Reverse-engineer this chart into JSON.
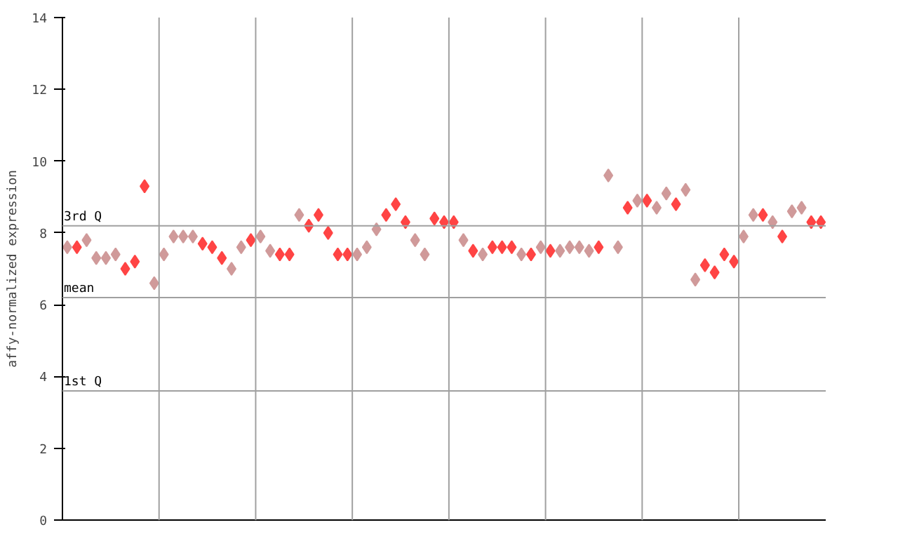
{
  "chart_data": {
    "type": "scatter",
    "ylabel": "affy-normalized expression",
    "categories": [
      null,
      null,
      null,
      null,
      null,
      null,
      null,
      null,
      null,
      null,
      null,
      null,
      null,
      null,
      null,
      null,
      null,
      null,
      null,
      null,
      null,
      null,
      null,
      null,
      null,
      null,
      null,
      null,
      null,
      null,
      null,
      null,
      null,
      null,
      null,
      null,
      null,
      null,
      null,
      null,
      null,
      null,
      null,
      null,
      null,
      null,
      null,
      null,
      null,
      null,
      null,
      null,
      null,
      null,
      null,
      null,
      null,
      null,
      null,
      null,
      null,
      null,
      null,
      null,
      null,
      null,
      null,
      null,
      null,
      null,
      null,
      null,
      null,
      null,
      null,
      null,
      null,
      null,
      null
    ],
    "values": [
      7.6,
      7.6,
      7.8,
      7.3,
      7.3,
      7.4,
      7.0,
      7.2,
      9.3,
      6.6,
      7.4,
      7.9,
      7.9,
      7.9,
      7.7,
      7.6,
      7.3,
      7.0,
      7.6,
      7.8,
      7.9,
      7.5,
      7.4,
      7.4,
      8.5,
      8.2,
      8.5,
      8.0,
      7.4,
      7.4,
      7.4,
      7.6,
      8.1,
      8.5,
      8.8,
      8.3,
      7.8,
      7.4,
      8.4,
      8.3,
      8.3,
      7.8,
      7.5,
      7.4,
      7.6,
      7.6,
      7.6,
      7.4,
      7.4,
      7.6,
      7.5,
      7.5,
      7.6,
      7.6,
      7.5,
      7.6,
      9.6,
      7.6,
      8.7,
      8.9,
      8.9,
      8.7,
      9.1,
      8.8,
      9.2,
      6.7,
      7.1,
      6.9,
      7.4,
      7.2,
      7.9,
      8.5,
      8.5,
      8.3,
      7.9,
      8.6,
      8.7,
      8.3,
      8.3
    ],
    "colors": [
      "#d09a9a",
      "#ff4444",
      "#d09a9a",
      "#d09a9a",
      "#d09a9a",
      "#d09a9a",
      "#ff4444",
      "#ff4444",
      "#ff4444",
      "#d09a9a",
      "#d09a9a",
      "#d09a9a",
      "#d09a9a",
      "#d09a9a",
      "#ff4444",
      "#ff4444",
      "#ff4444",
      "#d09a9a",
      "#d09a9a",
      "#ff4444",
      "#d09a9a",
      "#d09a9a",
      "#ff4444",
      "#ff4444",
      "#d09a9a",
      "#ff4444",
      "#ff4444",
      "#ff4444",
      "#ff4444",
      "#ff4444",
      "#d09a9a",
      "#d09a9a",
      "#d09a9a",
      "#ff4444",
      "#ff4444",
      "#ff4444",
      "#d09a9a",
      "#d09a9a",
      "#ff4444",
      "#ff4444",
      "#ff4444",
      "#d09a9a",
      "#ff4444",
      "#d09a9a",
      "#ff4444",
      "#ff4444",
      "#ff4444",
      "#d09a9a",
      "#ff4444",
      "#d09a9a",
      "#ff4444",
      "#d09a9a",
      "#d09a9a",
      "#d09a9a",
      "#d09a9a",
      "#ff4444",
      "#d09a9a",
      "#d09a9a",
      "#ff4444",
      "#d09a9a",
      "#ff4444",
      "#d09a9a",
      "#d09a9a",
      "#ff4444",
      "#d09a9a",
      "#d09a9a",
      "#ff4444",
      "#ff4444",
      "#ff4444",
      "#ff4444",
      "#d09a9a",
      "#d09a9a",
      "#ff4444",
      "#d09a9a",
      "#ff4444",
      "#d09a9a",
      "#d09a9a",
      "#ff4444",
      "#ff4444"
    ],
    "marker": "diamond",
    "ylim": [
      0,
      14
    ],
    "yticks": [
      0,
      2,
      4,
      6,
      8,
      10,
      12,
      14
    ],
    "tick_labels": "y",
    "ref_lines": [
      {
        "axis": "y",
        "value": 8.2,
        "label": "3rd Q",
        "color": "#a0a0a0"
      },
      {
        "axis": "y",
        "value": 6.2,
        "label": "mean",
        "color": "#a0a0a0"
      },
      {
        "axis": "y",
        "value": 3.6,
        "label": "1st Q",
        "color": "#a0a0a0"
      }
    ]
  }
}
